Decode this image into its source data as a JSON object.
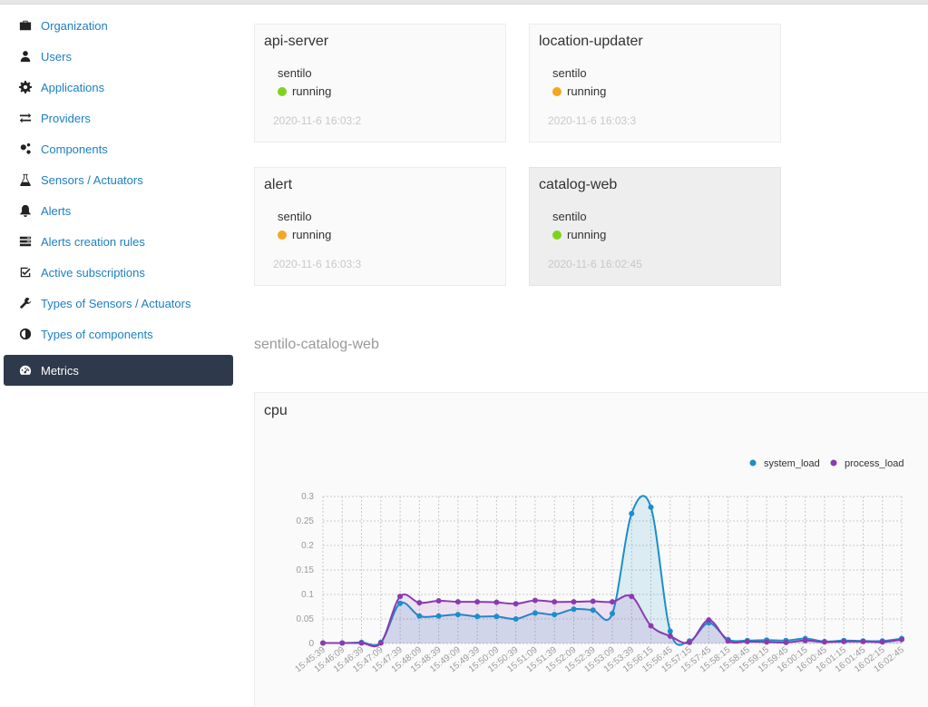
{
  "sidebar": {
    "items": [
      {
        "label": "Organization",
        "icon": "briefcase-icon",
        "active": false
      },
      {
        "label": "Users",
        "icon": "user-icon",
        "active": false
      },
      {
        "label": "Applications",
        "icon": "gear-icon",
        "active": false
      },
      {
        "label": "Providers",
        "icon": "exchange-icon",
        "active": false
      },
      {
        "label": "Components",
        "icon": "cogs-icon",
        "active": false
      },
      {
        "label": "Sensors / Actuators",
        "icon": "flask-icon",
        "active": false
      },
      {
        "label": "Alerts",
        "icon": "bell-icon",
        "active": false
      },
      {
        "label": "Alerts creation rules",
        "icon": "list-icon",
        "active": false
      },
      {
        "label": "Active subscriptions",
        "icon": "checkbox-icon",
        "active": false
      },
      {
        "label": "Types of Sensors / Actuators",
        "icon": "wrench-icon",
        "active": false
      },
      {
        "label": "Types of components",
        "icon": "half-circle-icon",
        "active": false
      },
      {
        "label": "Metrics",
        "icon": "dashboard-icon",
        "active": true
      }
    ]
  },
  "cards": [
    {
      "title": "api-server",
      "sub": "sentilo",
      "status": "running",
      "status_color": "#7ed321",
      "timestamp": "2020-11-6 16:03:2"
    },
    {
      "title": "location-updater",
      "sub": "sentilo",
      "status": "running",
      "status_color": "#f5a623",
      "timestamp": "2020-11-6 16:03:3"
    },
    {
      "title": "alert",
      "sub": "sentilo",
      "status": "running",
      "status_color": "#f5a623",
      "timestamp": "2020-11-6 16:03:3"
    },
    {
      "title": "catalog-web",
      "sub": "sentilo",
      "status": "running",
      "status_color": "#7ed321",
      "timestamp": "2020-11-6 16:02:45"
    }
  ],
  "section_title": "sentilo-catalog-web",
  "chart_data": {
    "type": "area",
    "title": "cpu",
    "xlabel": "",
    "ylabel": "",
    "ylim": [
      0,
      0.3
    ],
    "yticks": [
      "0",
      "0.05",
      "0.1",
      "0.15",
      "0.2",
      "0.25",
      "0.3"
    ],
    "legend_position": "top-right",
    "grid": true,
    "x": [
      "15:45:39",
      "15:46:09",
      "15:46:39",
      "15:47:09",
      "15:47:39",
      "15:48:09",
      "15:48:39",
      "15:49:09",
      "15:49:39",
      "15:50:09",
      "15:50:39",
      "15:51:09",
      "15:51:39",
      "15:52:09",
      "15:52:39",
      "15:53:09",
      "15:53:39",
      "15:56:15",
      "15:56:45",
      "15:57:15",
      "15:57:45",
      "15:58:15",
      "15:58:45",
      "15:59:15",
      "15:59:45",
      "16:00:15",
      "16:00:45",
      "16:01:15",
      "16:01:45",
      "16:02:15",
      "16:02:45"
    ],
    "series": [
      {
        "name": "system_load",
        "color": "#1a8fc9",
        "values": [
          0.001,
          0.001,
          0.002,
          0.002,
          0.082,
          0.056,
          0.056,
          0.059,
          0.055,
          0.055,
          0.05,
          0.062,
          0.059,
          0.07,
          0.068,
          0.061,
          0.265,
          0.278,
          0.025,
          0.005,
          0.042,
          0.008,
          0.006,
          0.007,
          0.006,
          0.01,
          0.004,
          0.006,
          0.005,
          0.005,
          0.01
        ]
      },
      {
        "name": "process_load",
        "color": "#8a3bb0",
        "values": [
          0.001,
          0.001,
          0.001,
          0.001,
          0.096,
          0.083,
          0.087,
          0.085,
          0.085,
          0.084,
          0.081,
          0.088,
          0.085,
          0.085,
          0.086,
          0.085,
          0.096,
          0.036,
          0.015,
          0.002,
          0.048,
          0.005,
          0.004,
          0.003,
          0.002,
          0.006,
          0.003,
          0.004,
          0.004,
          0.003,
          0.008
        ]
      }
    ]
  }
}
